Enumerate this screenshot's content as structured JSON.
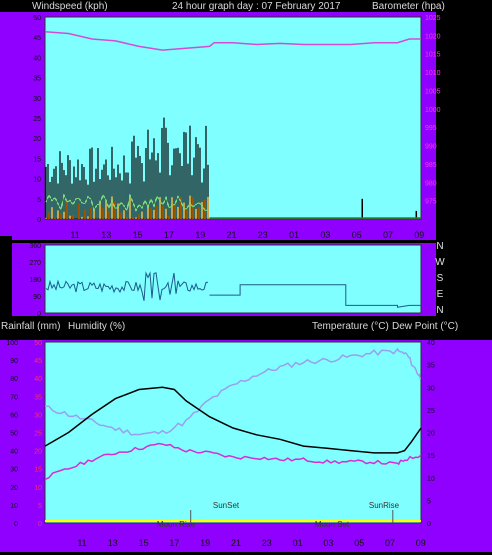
{
  "header": {
    "left_label": "Windspeed (kph)",
    "title": "24 hour graph day : 07 February 2017",
    "right_label": "Barometer (hpa)"
  },
  "x_ticks": [
    "11",
    "13",
    "15",
    "17",
    "19",
    "21",
    "23",
    "01",
    "03",
    "05",
    "07",
    "09"
  ],
  "colors": {
    "background": "#000000",
    "panel_side": "#8f00ff",
    "plot_fill": "#7fffff",
    "wind_avg": "#000000",
    "wind_gust": "#ff8c00",
    "wind_lull": "#7ce07c",
    "barometer": "#d44cd4",
    "wind_dir": "#1e5a8c",
    "temperature": "#000000",
    "dew_point": "#d42fd4",
    "humidity": "#9a9ff0",
    "rainfall": "#ffff00"
  },
  "top": {
    "left_axis": {
      "min": 0,
      "max": 50,
      "ticks": [
        0,
        5,
        10,
        15,
        20,
        25,
        30,
        35,
        40,
        45,
        50
      ]
    },
    "right_axis": {
      "min": 970,
      "max": 1025,
      "ticks": [
        975,
        980,
        985,
        990,
        995,
        1000,
        1005,
        1010,
        1015,
        1020,
        1025
      ]
    },
    "barometer": [
      [
        0,
        1021
      ],
      [
        1,
        1020.5
      ],
      [
        2,
        1019
      ],
      [
        3,
        1018.5
      ],
      [
        4,
        1017
      ],
      [
        5,
        1016
      ],
      [
        6,
        1016.5
      ],
      [
        7,
        1017
      ],
      [
        7.2,
        1018
      ],
      [
        8,
        1018
      ],
      [
        9,
        1017.5
      ],
      [
        10,
        1017.8
      ],
      [
        11,
        1017.5
      ],
      [
        12,
        1017.5
      ],
      [
        13,
        1017.5
      ],
      [
        14,
        1018
      ],
      [
        15,
        1018
      ],
      [
        15.5,
        1019
      ],
      [
        16,
        1019
      ]
    ],
    "wind_end_hour": 7,
    "late_spikes": [
      [
        13.5,
        5
      ],
      [
        15.8,
        2
      ]
    ]
  },
  "middle": {
    "left_axis": {
      "min": 0,
      "max": 360,
      "ticks": [
        0,
        90,
        180,
        270,
        360
      ]
    },
    "compass": [
      "N",
      "W",
      "S",
      "E",
      "N"
    ],
    "direction_segments": [
      [
        7,
        95
      ],
      [
        8.3,
        95
      ],
      [
        8.3,
        150
      ],
      [
        12.8,
        150
      ],
      [
        12.8,
        40
      ],
      [
        15,
        40
      ],
      [
        15,
        30
      ],
      [
        15.5,
        40
      ],
      [
        16,
        40
      ]
    ]
  },
  "bottom": {
    "left_label": "Rainfall (mm)",
    "left_label2": "Humidity (%)",
    "right_label": "Temperature (°C)",
    "right_label2": "Dew Point (°C)",
    "left_axis": {
      "min": 0,
      "max": 100,
      "ticks": [
        0,
        10,
        20,
        30,
        40,
        50,
        60,
        70,
        80,
        90,
        100
      ]
    },
    "rain_axis": {
      "min": 0,
      "max": 50,
      "ticks": [
        0,
        5,
        10,
        15,
        20,
        25,
        30,
        35,
        40,
        45,
        50
      ]
    },
    "right_axis": {
      "min": 0,
      "max": 40,
      "ticks": [
        0,
        5,
        10,
        15,
        20,
        25,
        30,
        35,
        40
      ]
    },
    "temperature": [
      [
        0,
        17
      ],
      [
        1,
        20
      ],
      [
        2,
        24
      ],
      [
        3,
        27.5
      ],
      [
        4,
        29.5
      ],
      [
        5,
        30
      ],
      [
        5.5,
        29.5
      ],
      [
        6,
        27
      ],
      [
        7,
        23.5
      ],
      [
        8,
        21
      ],
      [
        9,
        19.5
      ],
      [
        10,
        18.5
      ],
      [
        11,
        17
      ],
      [
        12,
        16.5
      ],
      [
        13,
        16
      ],
      [
        14,
        15.5
      ],
      [
        15,
        15.5
      ],
      [
        15.3,
        16
      ],
      [
        15.6,
        18
      ],
      [
        16,
        21
      ]
    ],
    "dew_point": [
      [
        0,
        10
      ],
      [
        1,
        12
      ],
      [
        2,
        14
      ],
      [
        3,
        15.5
      ],
      [
        4,
        16.5
      ],
      [
        5,
        17.5
      ],
      [
        6,
        16
      ],
      [
        7,
        15.5
      ],
      [
        8,
        14.5
      ],
      [
        9,
        14.5
      ],
      [
        10,
        14
      ],
      [
        11,
        14
      ],
      [
        12,
        13.5
      ],
      [
        13,
        13.5
      ],
      [
        14,
        13.5
      ],
      [
        15,
        13
      ],
      [
        15.3,
        14
      ],
      [
        16,
        15
      ]
    ],
    "humidity": [
      [
        0,
        64
      ],
      [
        1,
        60
      ],
      [
        2,
        56
      ],
      [
        3,
        52
      ],
      [
        4,
        49
      ],
      [
        5,
        50
      ],
      [
        6,
        56
      ],
      [
        7,
        68
      ],
      [
        8,
        76
      ],
      [
        9,
        82
      ],
      [
        10,
        86
      ],
      [
        11,
        89
      ],
      [
        12,
        90
      ],
      [
        13,
        92
      ],
      [
        14,
        94
      ],
      [
        15,
        95
      ],
      [
        15.4,
        93
      ],
      [
        15.8,
        84
      ],
      [
        16,
        80
      ]
    ],
    "annotations": {
      "moon_rise": "Moon Rise",
      "sun_set": "SunSet",
      "moon_set": "Moon Set",
      "sun_rise": "SunRise"
    },
    "annotation_hours": {
      "sun_set": 6.2,
      "sun_rise": 14.8
    }
  }
}
